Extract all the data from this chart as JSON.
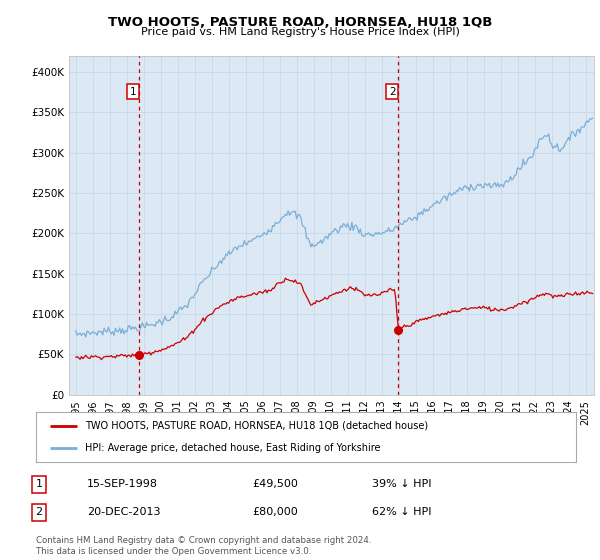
{
  "title": "TWO HOOTS, PASTURE ROAD, HORNSEA, HU18 1QB",
  "subtitle": "Price paid vs. HM Land Registry's House Price Index (HPI)",
  "legend_line1": "TWO HOOTS, PASTURE ROAD, HORNSEA, HU18 1QB (detached house)",
  "legend_line2": "HPI: Average price, detached house, East Riding of Yorkshire",
  "footnote": "Contains HM Land Registry data © Crown copyright and database right 2024.\nThis data is licensed under the Open Government Licence v3.0.",
  "sale1_date": "15-SEP-1998",
  "sale1_price": 49500,
  "sale1_label": "39% ↓ HPI",
  "sale2_date": "20-DEC-2013",
  "sale2_price": 80000,
  "sale2_label": "62% ↓ HPI",
  "sale1_x": 1998.71,
  "sale2_x": 2013.97,
  "background_color": "#dce9f5",
  "red_line_color": "#cc0000",
  "blue_line_color": "#7aaed6",
  "vline_color": "#cc0000",
  "grid_color": "#c8d8e8",
  "ylim": [
    0,
    420000
  ],
  "xlim_start": 1994.6,
  "xlim_end": 2025.5,
  "hpi_anchors": [
    [
      1995.0,
      75000
    ],
    [
      1996.0,
      77000
    ],
    [
      1997.0,
      79000
    ],
    [
      1998.0,
      81000
    ],
    [
      1999.0,
      84000
    ],
    [
      1999.5,
      87000
    ],
    [
      2000.5,
      95000
    ],
    [
      2001.5,
      110000
    ],
    [
      2002.5,
      140000
    ],
    [
      2003.5,
      165000
    ],
    [
      2004.5,
      183000
    ],
    [
      2005.5,
      192000
    ],
    [
      2006.5,
      207000
    ],
    [
      2007.5,
      228000
    ],
    [
      2008.2,
      220000
    ],
    [
      2008.8,
      185000
    ],
    [
      2009.5,
      190000
    ],
    [
      2010.0,
      200000
    ],
    [
      2010.8,
      210000
    ],
    [
      2011.5,
      208000
    ],
    [
      2012.0,
      198000
    ],
    [
      2012.8,
      200000
    ],
    [
      2013.5,
      203000
    ],
    [
      2014.0,
      210000
    ],
    [
      2015.0,
      220000
    ],
    [
      2016.0,
      235000
    ],
    [
      2017.0,
      247000
    ],
    [
      2018.0,
      258000
    ],
    [
      2019.0,
      260000
    ],
    [
      2019.8,
      258000
    ],
    [
      2020.5,
      265000
    ],
    [
      2021.0,
      278000
    ],
    [
      2021.8,
      295000
    ],
    [
      2022.3,
      315000
    ],
    [
      2022.8,
      325000
    ],
    [
      2023.0,
      310000
    ],
    [
      2023.5,
      305000
    ],
    [
      2024.0,
      315000
    ],
    [
      2024.5,
      328000
    ],
    [
      2025.0,
      335000
    ],
    [
      2025.4,
      345000
    ]
  ],
  "red_anchors": [
    [
      1995.0,
      46500
    ],
    [
      1996.0,
      47000
    ],
    [
      1997.0,
      47500
    ],
    [
      1998.0,
      48500
    ],
    [
      1998.71,
      49500
    ],
    [
      1999.5,
      53000
    ],
    [
      2000.5,
      59000
    ],
    [
      2001.5,
      70000
    ],
    [
      2002.5,
      93000
    ],
    [
      2003.5,
      110000
    ],
    [
      2004.5,
      120000
    ],
    [
      2005.5,
      125000
    ],
    [
      2006.5,
      130000
    ],
    [
      2007.0,
      140000
    ],
    [
      2007.5,
      144000
    ],
    [
      2008.2,
      138000
    ],
    [
      2008.8,
      112000
    ],
    [
      2009.5,
      118000
    ],
    [
      2010.0,
      123000
    ],
    [
      2010.8,
      130000
    ],
    [
      2011.2,
      133000
    ],
    [
      2011.8,
      127000
    ],
    [
      2012.0,
      123000
    ],
    [
      2012.8,
      124000
    ],
    [
      2013.0,
      125000
    ],
    [
      2013.5,
      130000
    ],
    [
      2013.8,
      129000
    ],
    [
      2013.97,
      80000
    ],
    [
      2014.3,
      84000
    ],
    [
      2015.0,
      90000
    ],
    [
      2016.0,
      97000
    ],
    [
      2017.0,
      102000
    ],
    [
      2018.0,
      107000
    ],
    [
      2019.0,
      108000
    ],
    [
      2019.8,
      105000
    ],
    [
      2020.5,
      107000
    ],
    [
      2021.0,
      112000
    ],
    [
      2021.8,
      118000
    ],
    [
      2022.3,
      124000
    ],
    [
      2022.8,
      126000
    ],
    [
      2023.0,
      122000
    ],
    [
      2023.5,
      122000
    ],
    [
      2024.0,
      124000
    ],
    [
      2024.5,
      126000
    ],
    [
      2025.0,
      126500
    ],
    [
      2025.4,
      128000
    ]
  ]
}
